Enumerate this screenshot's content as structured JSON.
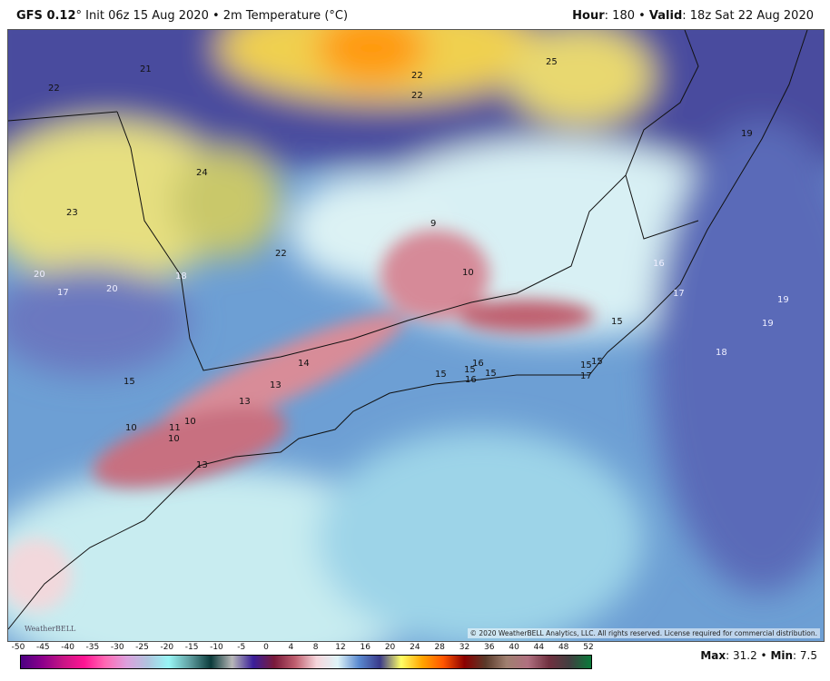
{
  "header": {
    "model": "GFS 0.12",
    "init": "° Init 06z 15 Aug 2020 • 2m Temperature (°C)",
    "hour_label": "Hour",
    "hour": ": 180 • ",
    "valid_label": "Valid",
    "valid": ": 18z Sat 22 Aug 2020"
  },
  "map": {
    "copyright": "© 2020 WeatherBELL Analytics, LLC. All rights reserved. License required for commercial distribution.",
    "logo": "WeatherBELL",
    "labels": [
      "21",
      "22",
      "22",
      "22",
      "25",
      "19",
      "24",
      "23",
      "22",
      "9",
      "10",
      "20",
      "17",
      "20",
      "18",
      "16",
      "17",
      "15",
      "19",
      "19",
      "18",
      "14",
      "13",
      "13",
      "15",
      "15",
      "15",
      "16",
      "16",
      "15",
      "15",
      "17",
      "15",
      "10",
      "11",
      "10",
      "10",
      "13"
    ]
  },
  "colorbar": {
    "ticks": [
      "-50",
      "-45",
      "-40",
      "-35",
      "-30",
      "-25",
      "-20",
      "-15",
      "-10",
      "-5",
      "0",
      "4",
      "8",
      "12",
      "16",
      "20",
      "24",
      "28",
      "32",
      "36",
      "40",
      "44",
      "48",
      "52"
    ],
    "colors": [
      "#4b0082",
      "#8b008b",
      "#c71585",
      "#ff1493",
      "#ff69b4",
      "#dda0dd",
      "#b0c4de",
      "#98f5f5",
      "#5f9ea0",
      "#0b3b3b",
      "#b8b8b8",
      "#3a1f9a",
      "#7a1a3a",
      "#c06070",
      "#f6d6dc",
      "#dff4f8",
      "#5a8ad0",
      "#3a3a8a",
      "#ffff66",
      "#ffa500",
      "#ff5500",
      "#8b0000",
      "#5a3a2a",
      "#a08070",
      "#b07080",
      "#703040",
      "#404040",
      "#0a7a3a"
    ]
  },
  "stats": {
    "max_label": "Max",
    "max": ": 31.2 • ",
    "min_label": "Min",
    "min": ": 7.5"
  }
}
